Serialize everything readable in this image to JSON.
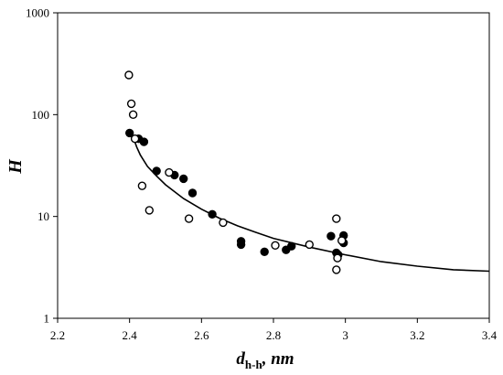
{
  "chart_data": {
    "type": "scatter",
    "xlabel": "d",
    "xlabel_subscript": "h-h",
    "xlabel_suffix": ", nm",
    "ylabel": "H",
    "xlim": [
      2.2,
      3.4
    ],
    "ylim": [
      1,
      1000
    ],
    "y_scale": "log",
    "grid": false,
    "x_ticks": [
      "2.2",
      "2.4",
      "2.6",
      "2.8",
      "3",
      "3.2",
      "3.4"
    ],
    "y_ticks": [
      "1",
      "10",
      "100",
      "1000"
    ],
    "series": [
      {
        "marker": "filled-circle",
        "color": "#000000",
        "points": [
          [
            2.4,
            66
          ],
          [
            2.425,
            58
          ],
          [
            2.44,
            54
          ],
          [
            2.475,
            28
          ],
          [
            2.525,
            25.5
          ],
          [
            2.55,
            23.5
          ],
          [
            2.575,
            17
          ],
          [
            2.63,
            10.5
          ],
          [
            2.71,
            5.7
          ],
          [
            2.71,
            5.3
          ],
          [
            2.775,
            4.5
          ],
          [
            2.835,
            4.7
          ],
          [
            2.85,
            5.1
          ],
          [
            2.96,
            6.4
          ],
          [
            2.975,
            4.4
          ],
          [
            2.98,
            4.2
          ],
          [
            2.995,
            5.5
          ],
          [
            2.995,
            6.5
          ]
        ]
      },
      {
        "marker": "open-circle",
        "color": "#000000",
        "points": [
          [
            2.398,
            245
          ],
          [
            2.405,
            128
          ],
          [
            2.41,
            100
          ],
          [
            2.415,
            58
          ],
          [
            2.435,
            20
          ],
          [
            2.455,
            11.5
          ],
          [
            2.51,
            27
          ],
          [
            2.565,
            9.5
          ],
          [
            2.66,
            8.7
          ],
          [
            2.805,
            5.2
          ],
          [
            2.9,
            5.3
          ],
          [
            2.975,
            9.5
          ],
          [
            2.975,
            3.0
          ],
          [
            2.978,
            3.9
          ],
          [
            2.99,
            5.8
          ]
        ]
      }
    ],
    "fit_curve": {
      "style": "solid",
      "color": "#000000",
      "points": [
        [
          2.41,
          60
        ],
        [
          2.42,
          48
        ],
        [
          2.43,
          40
        ],
        [
          2.45,
          31
        ],
        [
          2.475,
          25
        ],
        [
          2.5,
          20.5
        ],
        [
          2.55,
          15
        ],
        [
          2.6,
          11.8
        ],
        [
          2.65,
          9.6
        ],
        [
          2.7,
          8.1
        ],
        [
          2.75,
          7.0
        ],
        [
          2.8,
          6.1
        ],
        [
          2.9,
          5.0
        ],
        [
          3.0,
          4.2
        ],
        [
          3.1,
          3.6
        ],
        [
          3.2,
          3.25
        ],
        [
          3.3,
          3.0
        ],
        [
          3.4,
          2.9
        ]
      ]
    }
  }
}
